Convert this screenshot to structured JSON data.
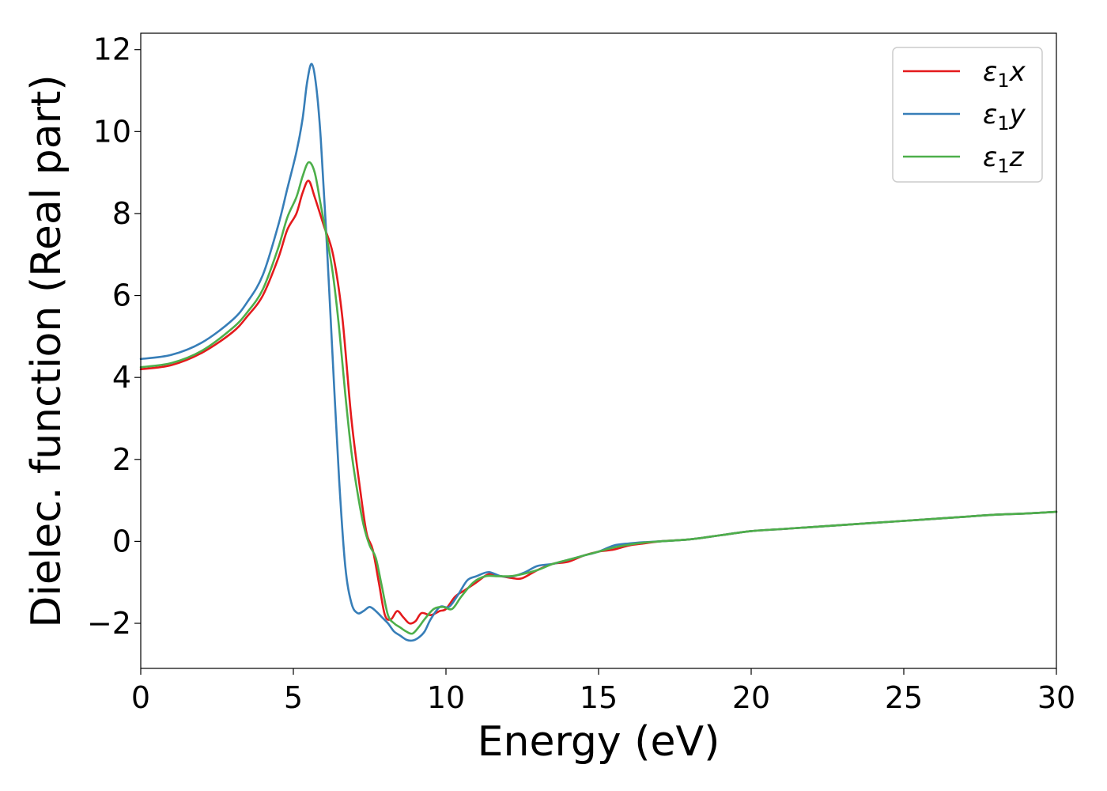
{
  "chart_data": {
    "type": "line",
    "title": "",
    "xlabel": "Energy (eV)",
    "ylabel": "Dielec. function (Real part)",
    "xlim": [
      0,
      30
    ],
    "ylim": [
      -3.1,
      12.4
    ],
    "xticks": [
      0,
      5,
      10,
      15,
      20,
      25,
      30
    ],
    "yticks": [
      -2,
      0,
      2,
      4,
      6,
      8,
      10,
      12
    ],
    "ytick_labels": [
      "−2",
      "0",
      "2",
      "4",
      "6",
      "8",
      "10",
      "12"
    ],
    "grid": false,
    "legend_position": "top-right",
    "series": [
      {
        "name": "ε1x",
        "name_base": "ε",
        "name_sub": "1",
        "name_suffix": "x",
        "color": "#e41a1c",
        "x": [
          0,
          1,
          2,
          3,
          3.5,
          4,
          4.5,
          4.8,
          5.1,
          5.3,
          5.5,
          5.7,
          6.0,
          6.3,
          6.6,
          6.9,
          7.2,
          7.4,
          7.6,
          7.8,
          8.0,
          8.2,
          8.4,
          8.6,
          8.8,
          9.0,
          9.2,
          9.5,
          9.8,
          10.0,
          10.3,
          10.6,
          11.0,
          11.4,
          11.8,
          12.2,
          12.5,
          13.0,
          13.5,
          14.0,
          14.5,
          15.0,
          15.5,
          16.0,
          16.5,
          17.0,
          18.0,
          19.0,
          20.0,
          21.0,
          22.0,
          23.0,
          24.0,
          25.0,
          26.0,
          27.0,
          28.0,
          29.0,
          30.0
        ],
        "y": [
          4.2,
          4.3,
          4.6,
          5.1,
          5.5,
          6.0,
          6.9,
          7.6,
          8.0,
          8.5,
          8.8,
          8.4,
          7.7,
          7.0,
          5.5,
          3.0,
          1.2,
          0.2,
          -0.2,
          -1.0,
          -1.8,
          -1.9,
          -1.7,
          -1.85,
          -2.0,
          -1.95,
          -1.75,
          -1.8,
          -1.7,
          -1.65,
          -1.35,
          -1.2,
          -1.0,
          -0.8,
          -0.85,
          -0.9,
          -0.9,
          -0.7,
          -0.55,
          -0.5,
          -0.35,
          -0.25,
          -0.2,
          -0.1,
          -0.05,
          0.0,
          0.05,
          0.15,
          0.25,
          0.3,
          0.35,
          0.4,
          0.45,
          0.5,
          0.55,
          0.6,
          0.65,
          0.68,
          0.72
        ]
      },
      {
        "name": "ε1y",
        "name_base": "ε",
        "name_sub": "1",
        "name_suffix": "y",
        "color": "#377eb8",
        "x": [
          0,
          1,
          2,
          3,
          3.5,
          4,
          4.5,
          4.8,
          5.1,
          5.3,
          5.45,
          5.6,
          5.75,
          5.9,
          6.1,
          6.3,
          6.5,
          6.7,
          6.9,
          7.1,
          7.3,
          7.5,
          7.7,
          7.9,
          8.1,
          8.3,
          8.5,
          8.7,
          8.9,
          9.1,
          9.3,
          9.5,
          9.8,
          10.1,
          10.4,
          10.7,
          11.0,
          11.4,
          11.8,
          12.2,
          12.6,
          13.0,
          13.5,
          14.0,
          14.5,
          15.0,
          15.5,
          16.0,
          16.5,
          17.0,
          18.0,
          19.0,
          20.0,
          21.0,
          22.0,
          23.0,
          24.0,
          25.0,
          26.0,
          27.0,
          28.0,
          29.0,
          30.0
        ],
        "y": [
          4.45,
          4.55,
          4.85,
          5.4,
          5.85,
          6.5,
          7.7,
          8.6,
          9.5,
          10.3,
          11.2,
          11.65,
          11.1,
          9.8,
          7.2,
          4.3,
          1.5,
          -0.6,
          -1.5,
          -1.75,
          -1.7,
          -1.6,
          -1.7,
          -1.85,
          -2.0,
          -2.2,
          -2.3,
          -2.4,
          -2.42,
          -2.35,
          -2.2,
          -1.9,
          -1.6,
          -1.6,
          -1.3,
          -0.95,
          -0.85,
          -0.75,
          -0.85,
          -0.85,
          -0.75,
          -0.6,
          -0.55,
          -0.45,
          -0.35,
          -0.25,
          -0.1,
          -0.05,
          -0.02,
          0.0,
          0.05,
          0.15,
          0.25,
          0.3,
          0.35,
          0.4,
          0.45,
          0.5,
          0.55,
          0.6,
          0.65,
          0.68,
          0.72
        ]
      },
      {
        "name": "ε1z",
        "name_base": "ε",
        "name_sub": "1",
        "name_suffix": "z",
        "color": "#4daf4a",
        "x": [
          0,
          1,
          2,
          3,
          3.5,
          4,
          4.5,
          4.8,
          5.1,
          5.3,
          5.5,
          5.7,
          5.9,
          6.1,
          6.3,
          6.5,
          6.7,
          6.9,
          7.1,
          7.3,
          7.5,
          7.7,
          7.9,
          8.1,
          8.3,
          8.5,
          8.7,
          8.9,
          9.1,
          9.3,
          9.6,
          9.9,
          10.2,
          10.5,
          10.9,
          11.3,
          11.7,
          12.1,
          12.5,
          13.0,
          13.5,
          14.0,
          14.5,
          15.0,
          15.5,
          16.0,
          16.5,
          17.0,
          18.0,
          19.0,
          20.0,
          21.0,
          22.0,
          23.0,
          24.0,
          25.0,
          26.0,
          27.0,
          28.0,
          29.0,
          30.0
        ],
        "y": [
          4.25,
          4.35,
          4.65,
          5.2,
          5.6,
          6.15,
          7.15,
          7.9,
          8.4,
          8.9,
          9.25,
          9.0,
          8.2,
          7.4,
          6.5,
          5.2,
          3.6,
          2.2,
          1.2,
          0.4,
          -0.1,
          -0.4,
          -1.1,
          -1.8,
          -2.0,
          -2.1,
          -2.2,
          -2.25,
          -2.1,
          -1.9,
          -1.65,
          -1.6,
          -1.65,
          -1.35,
          -1.0,
          -0.85,
          -0.85,
          -0.85,
          -0.8,
          -0.7,
          -0.55,
          -0.45,
          -0.35,
          -0.25,
          -0.15,
          -0.08,
          -0.03,
          0.0,
          0.05,
          0.15,
          0.25,
          0.3,
          0.35,
          0.4,
          0.45,
          0.5,
          0.55,
          0.6,
          0.65,
          0.68,
          0.72
        ]
      }
    ]
  }
}
